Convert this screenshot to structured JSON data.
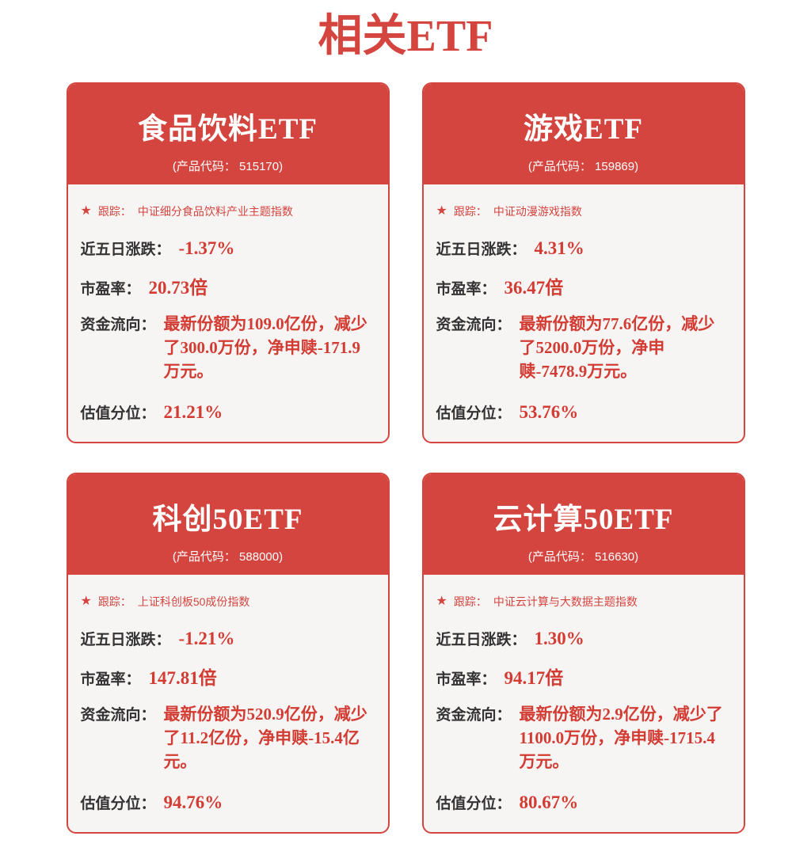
{
  "colors": {
    "accent": "#D4453F",
    "value_red": "#D23C33",
    "label_dark": "#333333",
    "card_body_bg": "#F7F4F4",
    "header_text": "#FFFFFF",
    "page_bg": "#FFFFFF"
  },
  "page": {
    "title": "相关ETF"
  },
  "icons": {
    "star": "★"
  },
  "field_labels": {
    "track": "跟踪：",
    "change": "近五日涨跌：",
    "pe": "市盈率：",
    "flow": "资金流向：",
    "valuation": "估值分位："
  },
  "cards": [
    {
      "title": "食品饮料ETF",
      "code": "(产品代码： 515170)",
      "index": "中证细分食品饮料产业主题指数",
      "change": "-1.37%",
      "pe": "20.73倍",
      "flow": "最新份额为109.0亿份，减少了300.0万份，净申赎-171.9万元。",
      "valuation": "21.21%"
    },
    {
      "title": "游戏ETF",
      "code": "(产品代码： 159869)",
      "index": "中证动漫游戏指数",
      "change": "4.31%",
      "pe": "36.47倍",
      "flow": "最新份额为77.6亿份，减少了5200.0万份，净申赎-7478.9万元。",
      "valuation": "53.76%"
    },
    {
      "title": "科创50ETF",
      "code": "(产品代码： 588000)",
      "index": "上证科创板50成份指数",
      "change": "-1.21%",
      "pe": "147.81倍",
      "flow": "最新份额为520.9亿份，减少了11.2亿份，净申赎-15.4亿元。",
      "valuation": "94.76%"
    },
    {
      "title": "云计算50ETF",
      "code": "(产品代码： 516630)",
      "index": "中证云计算与大数据主题指数",
      "change": "1.30%",
      "pe": "94.17倍",
      "flow": "最新份额为2.9亿份，减少了1100.0万份，净申赎-1715.4万元。",
      "valuation": "80.67%"
    }
  ]
}
